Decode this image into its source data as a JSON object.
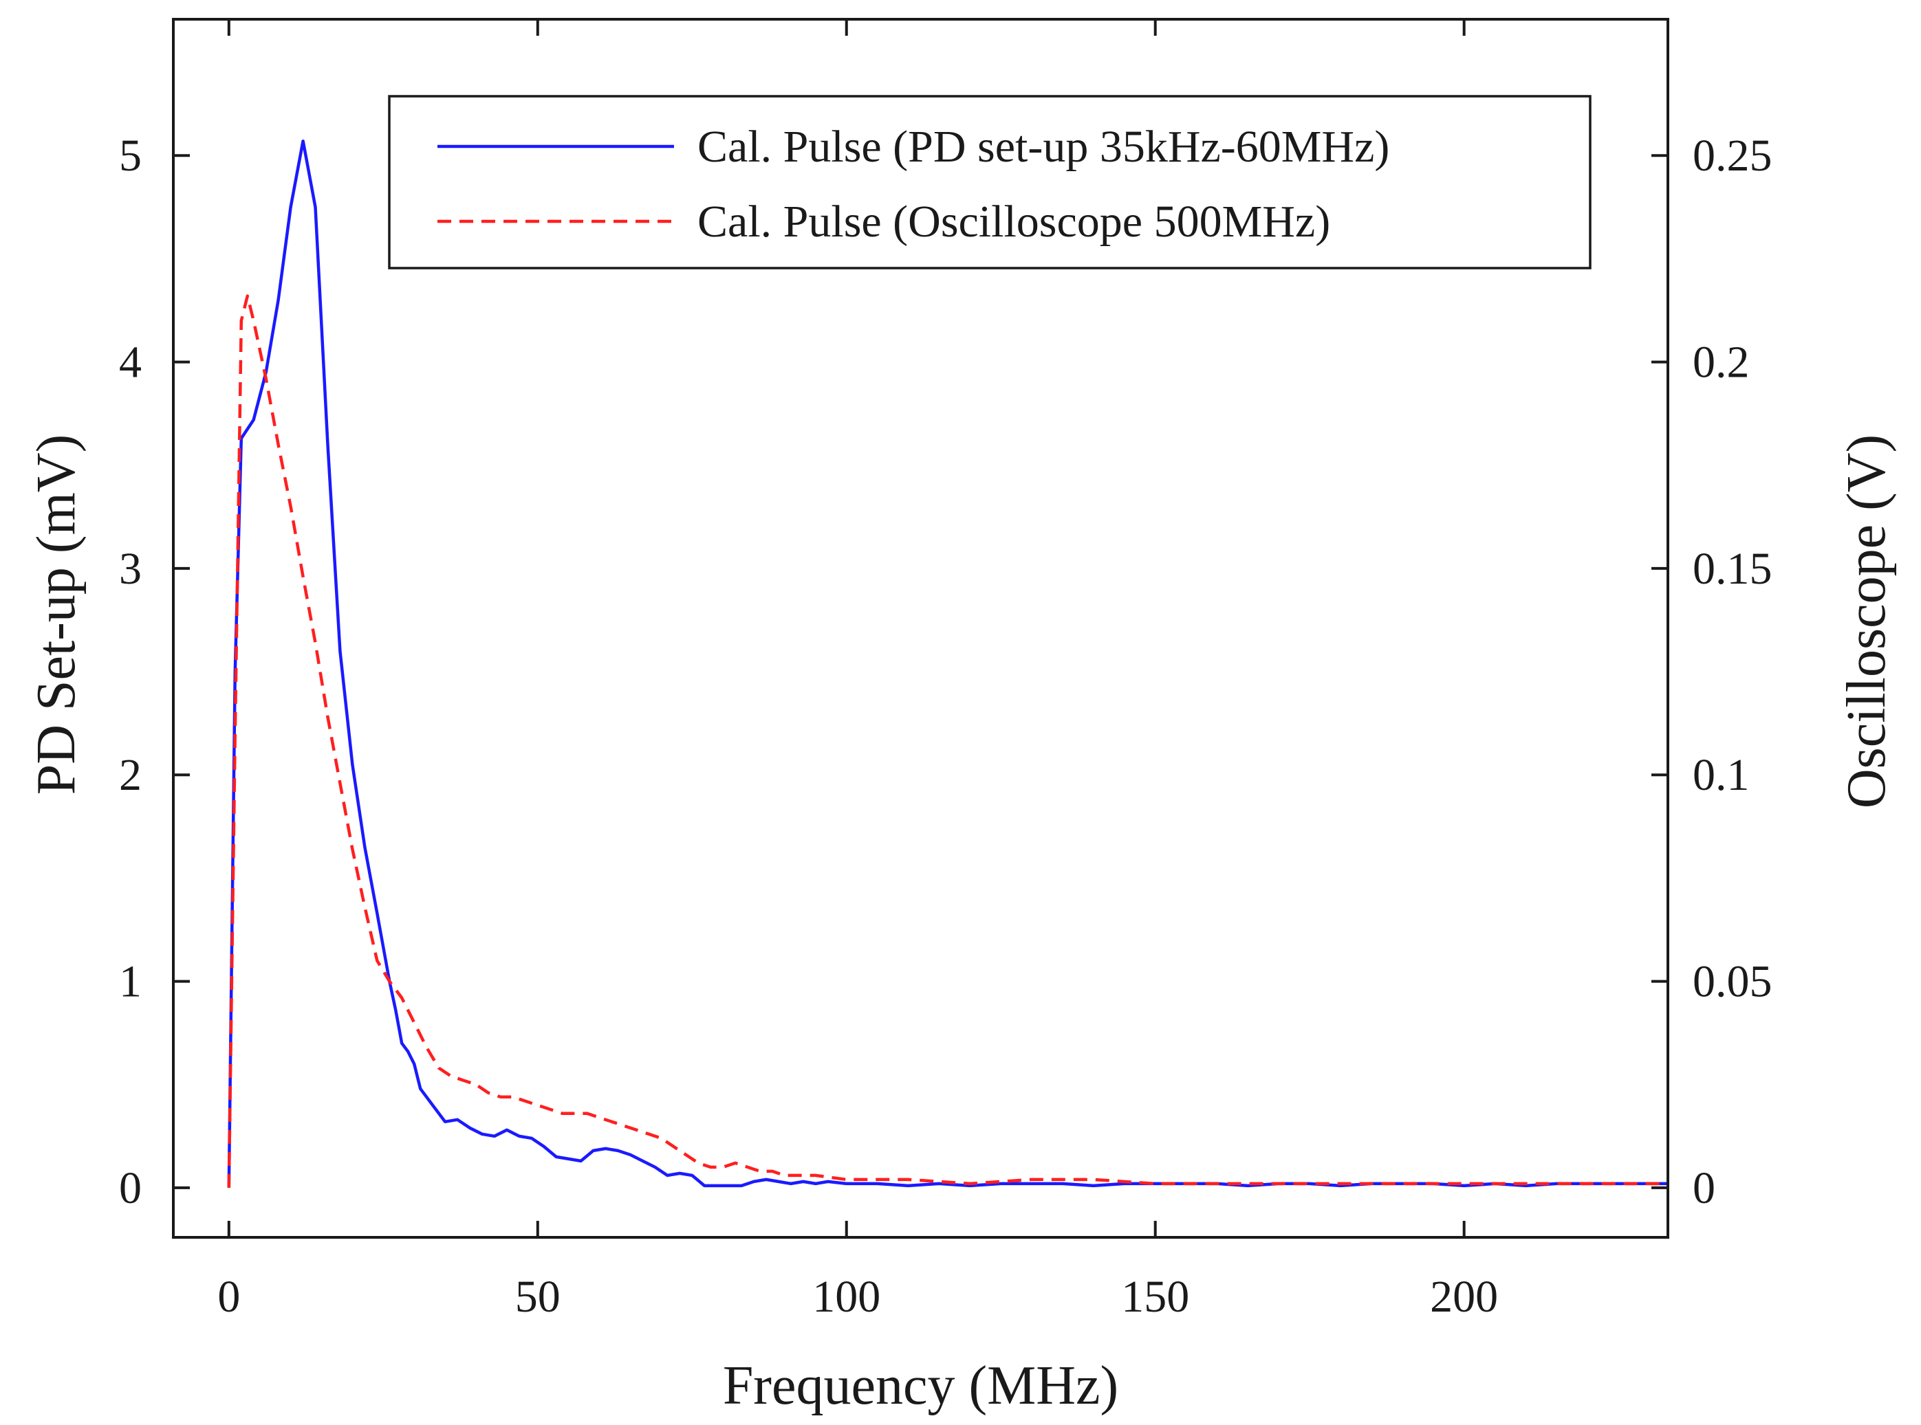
{
  "chart_data": {
    "type": "line",
    "title": "",
    "xlabel": "Frequency (MHz)",
    "ylabel_left": "PD Set-up (mV)",
    "ylabel_right": "Oscilloscope (V)",
    "xlim": [
      -9,
      233
    ],
    "ylim_left": [
      -0.24,
      5.66
    ],
    "ylim_right": [
      -0.012,
      0.283
    ],
    "x_ticks": [
      0,
      50,
      100,
      150,
      200
    ],
    "x_tick_labels": [
      "0",
      "50",
      "100",
      "150",
      "200"
    ],
    "y_left_ticks": [
      0,
      1,
      2,
      3,
      4,
      5
    ],
    "y_left_tick_labels": [
      "0",
      "1",
      "2",
      "3",
      "4",
      "5"
    ],
    "y_right_ticks": [
      0,
      0.05,
      0.1,
      0.15,
      0.2,
      0.25
    ],
    "y_right_tick_labels": [
      "0",
      "0.05",
      "0.1",
      "0.15",
      "0.2",
      "0.25"
    ],
    "legend_position": "top-right",
    "series": [
      {
        "name": "Cal. Pulse (PD set-up 35kHz-60MHz)",
        "axis": "left",
        "color": "#1a1aff",
        "dash": "solid",
        "x": [
          0,
          1,
          2,
          4,
          6,
          8,
          10,
          12,
          14,
          16,
          18,
          20,
          22,
          24,
          26,
          27,
          28,
          29,
          30,
          31,
          33,
          35,
          37,
          39,
          41,
          43,
          45,
          47,
          49,
          51,
          53,
          55,
          57,
          59,
          61,
          63,
          65,
          67,
          69,
          71,
          73,
          75,
          77,
          79,
          81,
          83,
          85,
          87,
          89,
          91,
          93,
          95,
          97,
          100,
          105,
          110,
          115,
          120,
          125,
          130,
          135,
          140,
          145,
          150,
          155,
          160,
          165,
          170,
          175,
          180,
          185,
          190,
          195,
          200,
          205,
          210,
          215,
          220,
          225,
          233
        ],
        "values": [
          0.0,
          2.5,
          3.63,
          3.72,
          3.95,
          4.3,
          4.75,
          5.07,
          4.75,
          3.6,
          2.6,
          2.05,
          1.65,
          1.33,
          1.0,
          0.86,
          0.7,
          0.66,
          0.6,
          0.48,
          0.4,
          0.32,
          0.33,
          0.29,
          0.26,
          0.25,
          0.28,
          0.25,
          0.24,
          0.2,
          0.15,
          0.14,
          0.13,
          0.18,
          0.19,
          0.18,
          0.16,
          0.13,
          0.1,
          0.06,
          0.07,
          0.06,
          0.01,
          0.01,
          0.01,
          0.01,
          0.03,
          0.04,
          0.03,
          0.02,
          0.03,
          0.02,
          0.03,
          0.02,
          0.02,
          0.01,
          0.02,
          0.01,
          0.02,
          0.02,
          0.02,
          0.01,
          0.02,
          0.02,
          0.02,
          0.02,
          0.01,
          0.02,
          0.02,
          0.01,
          0.02,
          0.02,
          0.02,
          0.01,
          0.02,
          0.01,
          0.02,
          0.02,
          0.02,
          0.02
        ]
      },
      {
        "name": "Cal. Pulse (Oscilloscope 500MHz)",
        "axis": "right",
        "color": "#ff1f1f",
        "dash": "dashed",
        "x": [
          0,
          1,
          2,
          3,
          4,
          6,
          8,
          10,
          12,
          14,
          16,
          18,
          20,
          22,
          24,
          26,
          28,
          30,
          32,
          34,
          36,
          38,
          40,
          42,
          44,
          46,
          48,
          50,
          52,
          54,
          56,
          58,
          60,
          62,
          64,
          66,
          68,
          70,
          72,
          74,
          76,
          78,
          80,
          82,
          84,
          86,
          88,
          90,
          95,
          100,
          110,
          120,
          130,
          140,
          150,
          160,
          170,
          180,
          190,
          200,
          210,
          220,
          233
        ],
        "values": [
          0.0,
          0.11,
          0.21,
          0.216,
          0.21,
          0.196,
          0.18,
          0.165,
          0.148,
          0.132,
          0.114,
          0.098,
          0.082,
          0.068,
          0.055,
          0.05,
          0.046,
          0.04,
          0.034,
          0.029,
          0.027,
          0.026,
          0.025,
          0.023,
          0.022,
          0.022,
          0.021,
          0.02,
          0.019,
          0.018,
          0.018,
          0.018,
          0.017,
          0.016,
          0.015,
          0.014,
          0.013,
          0.012,
          0.01,
          0.008,
          0.006,
          0.005,
          0.005,
          0.006,
          0.005,
          0.004,
          0.004,
          0.003,
          0.003,
          0.002,
          0.002,
          0.001,
          0.002,
          0.002,
          0.001,
          0.001,
          0.001,
          0.001,
          0.001,
          0.001,
          0.001,
          0.001,
          0.001
        ]
      }
    ]
  }
}
